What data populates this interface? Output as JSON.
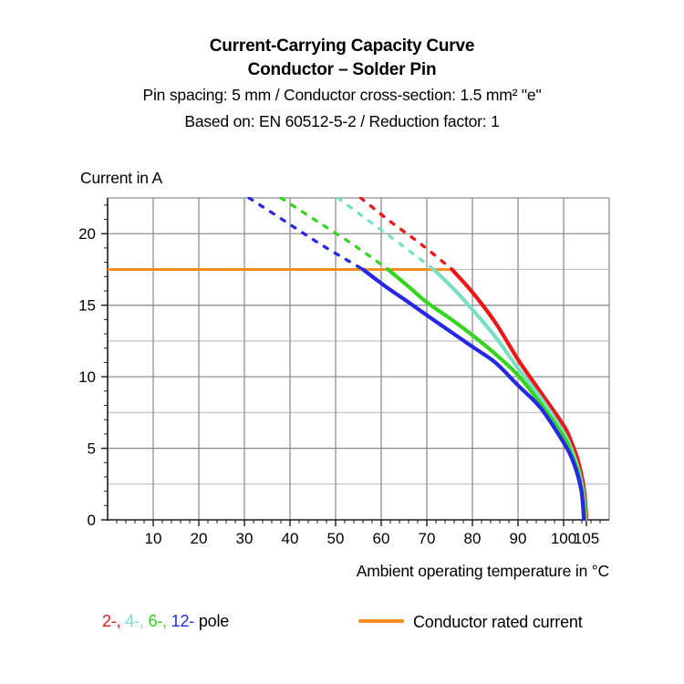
{
  "header": {
    "title_line1": "Current-Carrying Capacity Curve",
    "title_line2": "Conductor – Solder Pin",
    "subtitle_line1": "Pin spacing: 5 mm / Conductor cross-section: 1.5 mm² \"e\"",
    "subtitle_line2": "Based on: EN 60512-5-2 / Reduction factor: 1"
  },
  "chart_data": {
    "type": "line",
    "title": "Current-Carrying Capacity Curve — Conductor – Solder Pin",
    "xlabel": "Ambient operating temperature in °C",
    "ylabel": "Current in A",
    "xlim": [
      0,
      110
    ],
    "ylim": [
      0,
      22.5
    ],
    "x_major_ticks": [
      10,
      20,
      30,
      40,
      50,
      60,
      70,
      80,
      90,
      100,
      105
    ],
    "x_minor_step": 2,
    "y_major_ticks": [
      0,
      5,
      10,
      15,
      20
    ],
    "y_minor_step": 1,
    "x_grid_step": 10,
    "y_grid_step": 2.5,
    "grid_major_color": "#8f8f8f",
    "grid_minor_color": "#bcbcbc",
    "axis_color": "#1a1a1a",
    "legend_position": "bottom",
    "rated_current": {
      "value": 17.5,
      "x_start": 0,
      "x_end": 75.5,
      "color": "#f78f1e"
    },
    "dash_above_current": 17.5,
    "series": [
      {
        "name": "2-pole",
        "color": "#f11515",
        "points": [
          [
            55.5,
            22.5
          ],
          [
            62,
            20.85
          ],
          [
            69,
            19.2
          ],
          [
            75.5,
            17.5
          ],
          [
            80,
            15.9
          ],
          [
            85,
            13.8
          ],
          [
            90,
            11.2
          ],
          [
            95,
            8.9
          ],
          [
            100,
            6.6
          ],
          [
            101.5,
            5.6
          ],
          [
            103,
            4.3
          ],
          [
            104.2,
            2.7
          ],
          [
            104.75,
            1.3
          ],
          [
            105,
            0
          ]
        ]
      },
      {
        "name": "4-pole",
        "color": "#79dfc4",
        "points": [
          [
            50.5,
            22.5
          ],
          [
            57.5,
            20.85
          ],
          [
            64.5,
            19.2
          ],
          [
            71.5,
            17.5
          ],
          [
            76,
            16.1
          ],
          [
            80,
            14.7
          ],
          [
            85,
            12.8
          ],
          [
            90,
            10.6
          ],
          [
            95,
            8.5
          ],
          [
            100,
            6.1
          ],
          [
            101.5,
            5.1
          ],
          [
            103,
            3.8
          ],
          [
            104.1,
            2.3
          ],
          [
            104.6,
            1.1
          ],
          [
            104.85,
            0
          ]
        ]
      },
      {
        "name": "6-pole",
        "color": "#35d41e",
        "points": [
          [
            38,
            22.5
          ],
          [
            46,
            20.85
          ],
          [
            54,
            19.2
          ],
          [
            61.5,
            17.5
          ],
          [
            66,
            16.3
          ],
          [
            70,
            15.2
          ],
          [
            75,
            14.1
          ],
          [
            80,
            12.9
          ],
          [
            85,
            11.6
          ],
          [
            90,
            10.1
          ],
          [
            95,
            8.1
          ],
          [
            100,
            5.8
          ],
          [
            101.5,
            4.8
          ],
          [
            103,
            3.5
          ],
          [
            104,
            2.1
          ],
          [
            104.5,
            1.0
          ],
          [
            104.7,
            0
          ]
        ]
      },
      {
        "name": "12-pole",
        "color": "#2727e8",
        "points": [
          [
            31,
            22.5
          ],
          [
            39,
            20.85
          ],
          [
            47,
            19.2
          ],
          [
            56,
            17.5
          ],
          [
            61,
            16.3
          ],
          [
            66,
            15.2
          ],
          [
            70,
            14.3
          ],
          [
            75,
            13.2
          ],
          [
            80,
            12.1
          ],
          [
            85,
            11.0
          ],
          [
            90,
            9.4
          ],
          [
            95,
            7.8
          ],
          [
            100,
            5.4
          ],
          [
            101.8,
            4.3
          ],
          [
            103.2,
            3.0
          ],
          [
            104,
            1.8
          ],
          [
            104.45,
            0
          ]
        ]
      }
    ]
  },
  "legend": {
    "pole_items": [
      {
        "label": "2-,",
        "color": "#f11515"
      },
      {
        "label": "4-,",
        "color": "#79dfc4"
      },
      {
        "label": "6-,",
        "color": "#35d41e"
      },
      {
        "label": "12-",
        "color": "#2727e8"
      }
    ],
    "pole_suffix": "pole",
    "rated_label": "Conductor rated current"
  }
}
